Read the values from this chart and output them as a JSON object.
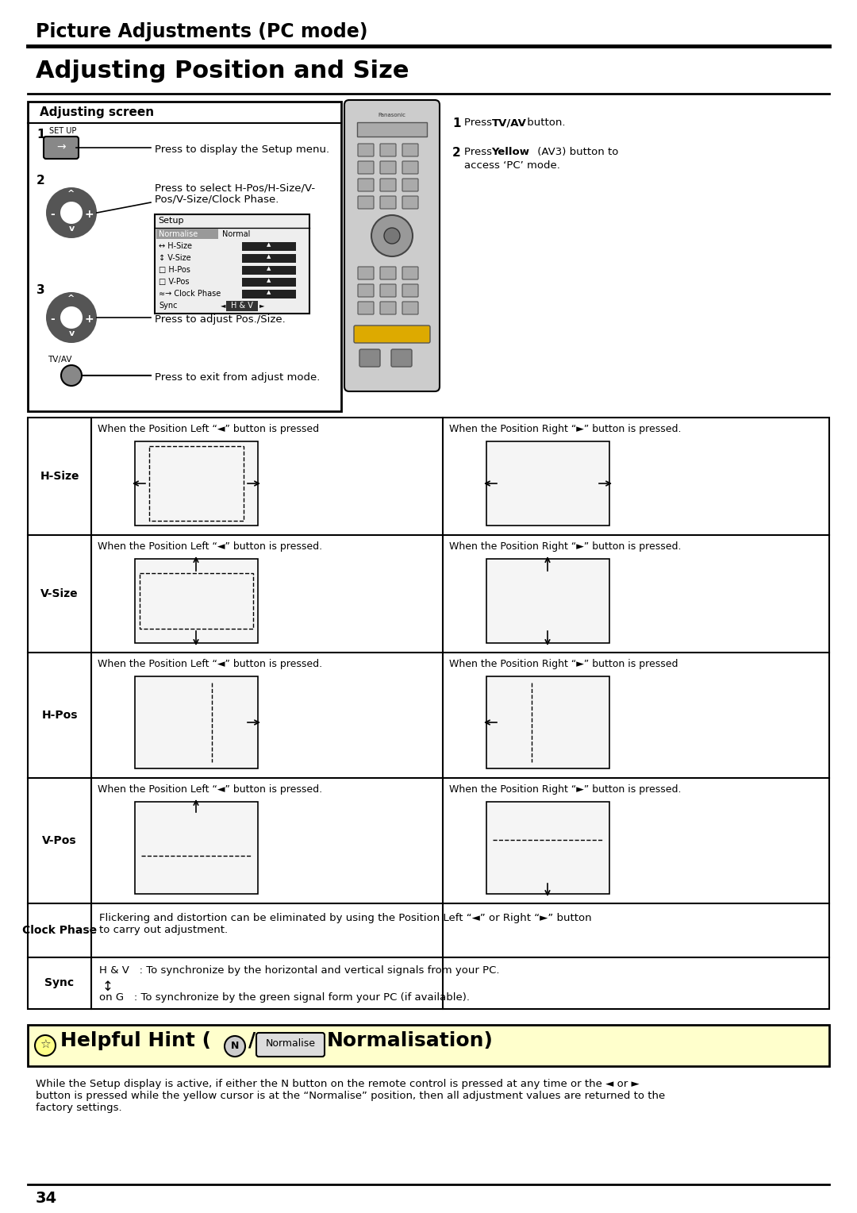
{
  "title_header": "Picture Adjustments (PC mode)",
  "title_main": "Adjusting Position and Size",
  "box_title": "Adjusting screen",
  "step1_text": "Press to display the Setup menu.",
  "step2_text": "Press to select H-Pos/H-Size/V-\nPos/V-Size/Clock Phase.",
  "step3_text": "Press to adjust Pos./Size.",
  "step4_text": "Press to exit from adjust mode.",
  "press1_text": "Press TV/AV button.",
  "press2_text": "(AV3) button to\naccess ‘PC’ mode.",
  "hsize_left_text": "When the Position Left “◄” button is pressed",
  "hsize_right_text": "When the Position Right “►” button is pressed.",
  "vsize_left_text": "When the Position Left “◄” button is pressed.",
  "vsize_right_text": "When the Position Right “►” button is pressed.",
  "hpos_left_text": "When the Position Left “◄” button is pressed.",
  "hpos_right_text": "When the Position Right “►” button is pressed",
  "vpos_left_text": "When the Position Left “◄” button is pressed.",
  "vpos_right_text": "When the Position Right “►” button is pressed.",
  "clock_text": "Flickering and distortion can be eliminated by using the Position Left “◄” or Right “►” button\nto carry out adjustment.",
  "sync_line1": "H & V   : To synchronize by the horizontal and vertical signals from your PC.",
  "sync_line2": "on G   : To synchronize by the green signal form your PC (if available).",
  "footer_text": "While the Setup display is active, if either the N button on the remote control is pressed at any time or the ◄ or ►\nbutton is pressed while the yellow cursor is at the “Normalise” position, then all adjustment values are returned to the\nfactory settings.",
  "page_number": "34",
  "bg_color": "#ffffff",
  "text_color": "#000000"
}
